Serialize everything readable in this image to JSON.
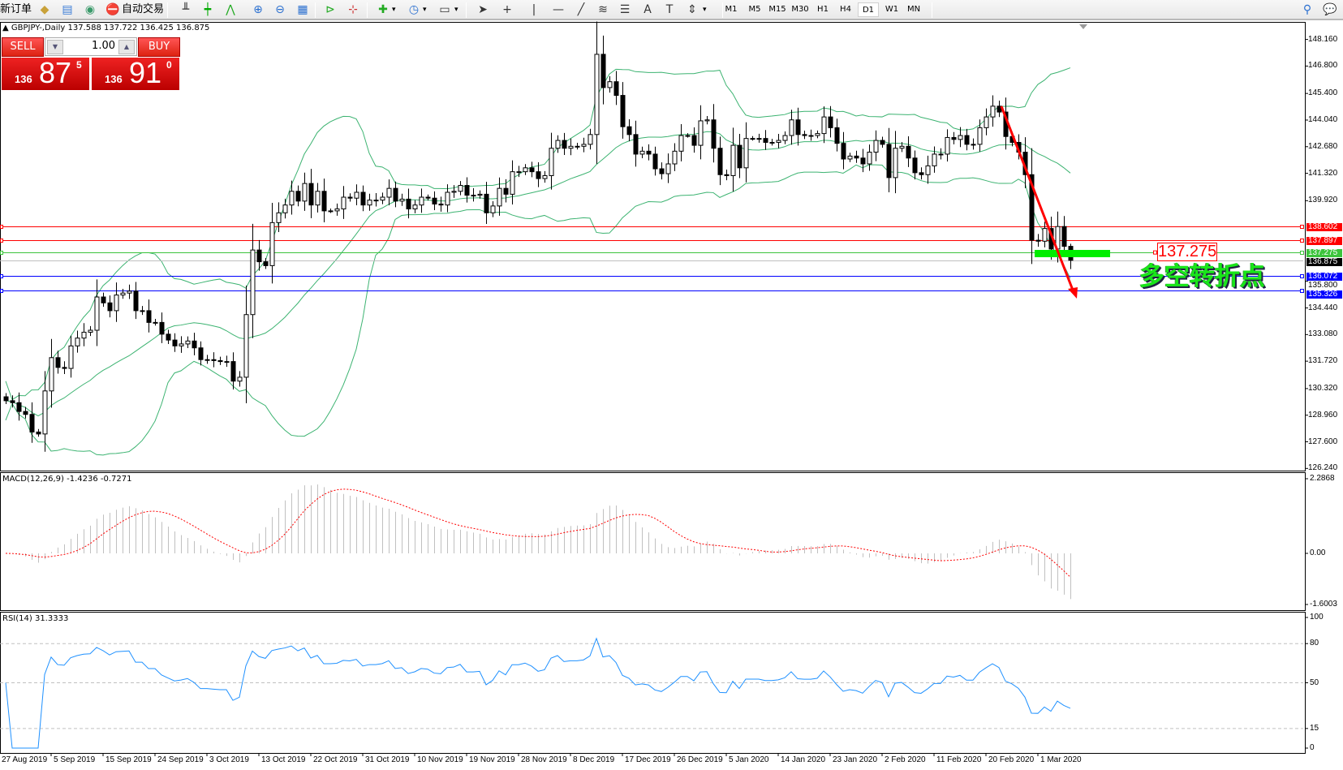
{
  "toolbar": {
    "new_order": "新订单",
    "auto_trading": "自动交易",
    "icons": [
      "market-watch-icon",
      "navigator-icon",
      "signals-icon",
      "auto-trading-icon",
      "bar-chart-icon",
      "candlestick-icon",
      "line-chart-icon",
      "zoom-in-icon",
      "zoom-out-icon",
      "tile-windows-icon",
      "chart-shift-icon",
      "auto-scroll-icon",
      "indicators-icon",
      "periods-icon",
      "templates-icon",
      "cursor-icon",
      "crosshair-icon",
      "vertical-line-icon",
      "horizontal-line-icon",
      "trendline-icon",
      "fibonacci-icon",
      "channel-icon",
      "text-icon",
      "text-label-icon",
      "arrows-icon",
      "search-icon",
      "chat-icon"
    ],
    "timeframes": [
      "M1",
      "M5",
      "M15",
      "M30",
      "H1",
      "H4",
      "D1",
      "W1",
      "MN"
    ],
    "active_timeframe": "D1"
  },
  "chart": {
    "symbol_line": "GBPJPY-,Daily  137.588 137.722 136.425 136.875"
  },
  "trade_panel": {
    "sell_label": "SELL",
    "buy_label": "BUY",
    "lot": "1.00",
    "sell_price": {
      "prefix": "136",
      "big": "87",
      "sup": "5"
    },
    "buy_price": {
      "prefix": "136",
      "big": "91",
      "sup": "0"
    }
  },
  "chart_data": {
    "type": "candlestick",
    "symbol": "GBPJPY-",
    "period": "Daily",
    "closes": [
      129.7,
      129.6,
      129.15,
      129.0,
      128.1,
      128.0,
      130.2,
      131.9,
      131.4,
      131.35,
      132.5,
      132.9,
      133.2,
      133.3,
      135.0,
      134.7,
      134.3,
      135.1,
      135.2,
      135.3,
      134.3,
      134.3,
      133.7,
      133.7,
      133.1,
      132.8,
      132.5,
      132.6,
      132.75,
      132.4,
      131.8,
      131.8,
      131.75,
      131.7,
      131.7,
      130.7,
      130.9,
      134.1,
      137.4,
      136.8,
      136.6,
      138.8,
      139.3,
      139.7,
      140.4,
      139.9,
      140.8,
      139.7,
      140.4,
      139.4,
      139.4,
      139.5,
      140.1,
      140.05,
      140.35,
      139.7,
      139.95,
      139.95,
      140.1,
      140.55,
      139.9,
      140.0,
      139.5,
      139.7,
      140.1,
      140.05,
      139.75,
      139.7,
      140.35,
      140.4,
      140.7,
      140.2,
      140.2,
      140.25,
      139.3,
      139.65,
      140.55,
      140.25,
      141.4,
      141.4,
      141.6,
      141.4,
      141.05,
      141.2,
      142.6,
      143.0,
      142.6,
      142.7,
      142.7,
      142.8,
      143.3,
      147.4,
      145.7,
      146.0,
      145.3,
      143.7,
      143.3,
      142.3,
      142.45,
      142.3,
      141.55,
      141.3,
      141.8,
      142.45,
      143.25,
      143.25,
      142.75,
      144.0,
      144.05,
      142.6,
      141.25,
      141.2,
      142.75,
      141.6,
      143.1,
      143.1,
      143.1,
      142.9,
      142.9,
      143.0,
      143.25,
      144.05,
      143.3,
      143.25,
      143.25,
      143.35,
      144.2,
      143.65,
      142.85,
      142.05,
      142.2,
      142.1,
      141.8,
      142.4,
      143.0,
      142.8,
      141.1,
      142.6,
      142.7,
      142.1,
      141.35,
      141.25,
      141.7,
      142.3,
      142.3,
      143.15,
      143.05,
      143.25,
      142.8,
      142.8,
      143.65,
      144.2,
      144.75,
      144.45,
      143.2,
      142.9,
      142.4,
      141.25,
      137.9,
      137.85,
      138.5,
      137.45,
      138.6,
      137.588,
      136.875
    ],
    "first_open": 129.9,
    "last_bar": {
      "open": 137.588,
      "high": 137.722,
      "low": 136.425,
      "close": 136.875
    },
    "price_ticks": [
      "148.160",
      "146.800",
      "145.400",
      "144.040",
      "142.680",
      "141.320",
      "139.920",
      "135.800",
      "134.440",
      "133.080",
      "131.720",
      "130.320",
      "128.960",
      "127.600",
      "126.240"
    ],
    "ylim": [
      126.24,
      148.16
    ],
    "date_labels": [
      "27 Aug 2019",
      "5 Sep 2019",
      "15 Sep 2019",
      "24 Sep 2019",
      "3 Oct 2019",
      "13 Oct 2019",
      "22 Oct 2019",
      "31 Oct 2019",
      "10 Nov 2019",
      "19 Nov 2019",
      "28 Nov 2019",
      "8 Dec 2019",
      "17 Dec 2019",
      "26 Dec 2019",
      "5 Jan 2020",
      "14 Jan 2020",
      "23 Jan 2020",
      "2 Feb 2020",
      "11 Feb 2020",
      "20 Feb 2020",
      "1 Mar 2020"
    ],
    "overlays": "Bollinger Bands",
    "colors": {
      "bands": "#3cb371",
      "bull_body": "#ffffff",
      "bear_body": "#000000"
    }
  },
  "hlines": [
    {
      "price": 138.602,
      "label": "138.602",
      "color": "#ff0000"
    },
    {
      "price": 137.897,
      "label": "137.897",
      "color": "#ff0000"
    },
    {
      "price": 137.275,
      "label": "137.275",
      "color": "#3cc43c"
    },
    {
      "price": 136.875,
      "label": "136.875",
      "color": "#000000",
      "line_color": "#c0c0c0"
    },
    {
      "price": 136.072,
      "label": "136.072",
      "color": "#0000ff"
    },
    {
      "price": 135.326,
      "label": "135.326",
      "color": "#0000ff"
    }
  ],
  "annotations": {
    "price_box": "137.275",
    "text": "多空转折点",
    "arrow_color": "#ff0000",
    "zone_color": "#00ee00"
  },
  "macd": {
    "label": "MACD(12,26,9) -1.4236 -0.7271",
    "ticks": [
      "2.2868",
      "0.00",
      "-1.6003"
    ],
    "range": [
      -1.6003,
      2.2868
    ],
    "histogram_color": "#c0c0c0",
    "signal_color": "#ff0000"
  },
  "rsi": {
    "label": "RSI(14) 31.3333",
    "ticks": [
      "100",
      "80",
      "50",
      "15",
      "0"
    ],
    "levels": [
      80,
      50,
      15
    ],
    "color": "#1e90ff"
  }
}
